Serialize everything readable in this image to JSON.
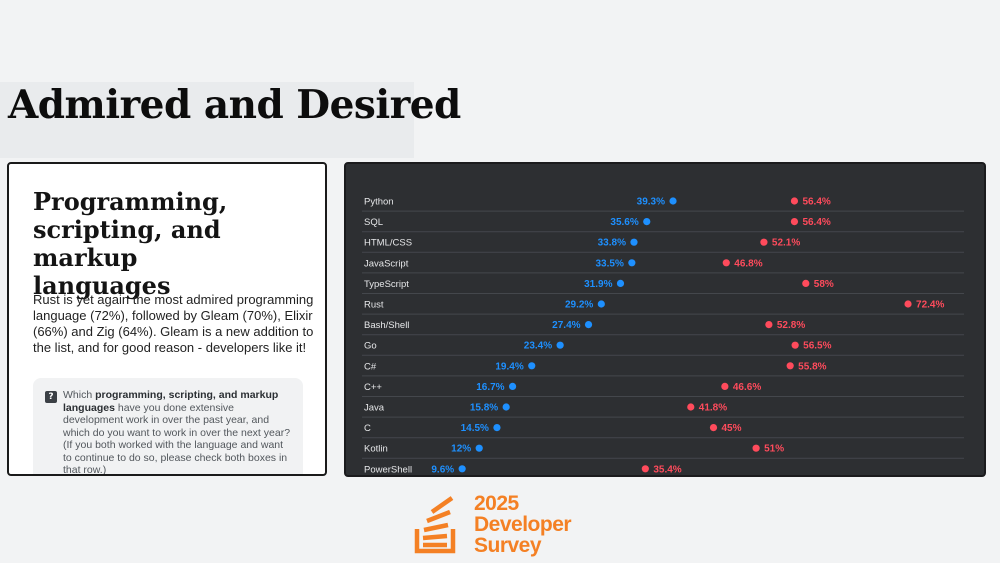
{
  "page": {
    "title": "Admired and Desired"
  },
  "card": {
    "heading": "Programming,\nscripting, and markup\nlanguages",
    "body": "Rust is yet again the most admired programming language (72%), followed by Gleam (70%), Elixir (66%) and Zig (64%). Gleam is a new addition to the list, and for good reason - developers like it!",
    "question_icon": "?",
    "question_pre": "Which ",
    "question_bold": "programming, scripting, and markup languages",
    "question_post": " have you done extensive development work in over the past year, and which do you want to work in over the next year? (If you both worked with the language and want to continue to do so, please check both boxes in that row.)"
  },
  "logo": {
    "line1": "2025",
    "line2": "Developer",
    "line3": "Survey",
    "color": "#f48024"
  },
  "chart_data": {
    "type": "dumbbell",
    "xlim": [
      0,
      80
    ],
    "categories": [
      "Python",
      "SQL",
      "HTML/CSS",
      "JavaScript",
      "TypeScript",
      "Rust",
      "Bash/Shell",
      "Go",
      "C#",
      "C++",
      "Java",
      "C",
      "Kotlin",
      "PowerShell"
    ],
    "series": [
      {
        "color": "#1e90ff",
        "labels": [
          "39.3%",
          "35.6%",
          "33.8%",
          "33.5%",
          "31.9%",
          "29.2%",
          "27.4%",
          "23.4%",
          "19.4%",
          "16.7%",
          "15.8%",
          "14.5%",
          "12%",
          "9.6%"
        ],
        "values": [
          39.3,
          35.6,
          33.8,
          33.5,
          31.9,
          29.2,
          27.4,
          23.4,
          19.4,
          16.7,
          15.8,
          14.5,
          12,
          9.6
        ]
      },
      {
        "color": "#ff4b5c",
        "labels": [
          "56.4%",
          "56.4%",
          "52.1%",
          "46.8%",
          "58%",
          "72.4%",
          "52.8%",
          "56.5%",
          "55.8%",
          "46.6%",
          "41.8%",
          "45%",
          "51%",
          "35.4%"
        ],
        "values": [
          56.4,
          56.4,
          52.1,
          46.8,
          58,
          72.4,
          52.8,
          56.5,
          55.8,
          46.6,
          41.8,
          45,
          51,
          35.4
        ]
      }
    ]
  }
}
